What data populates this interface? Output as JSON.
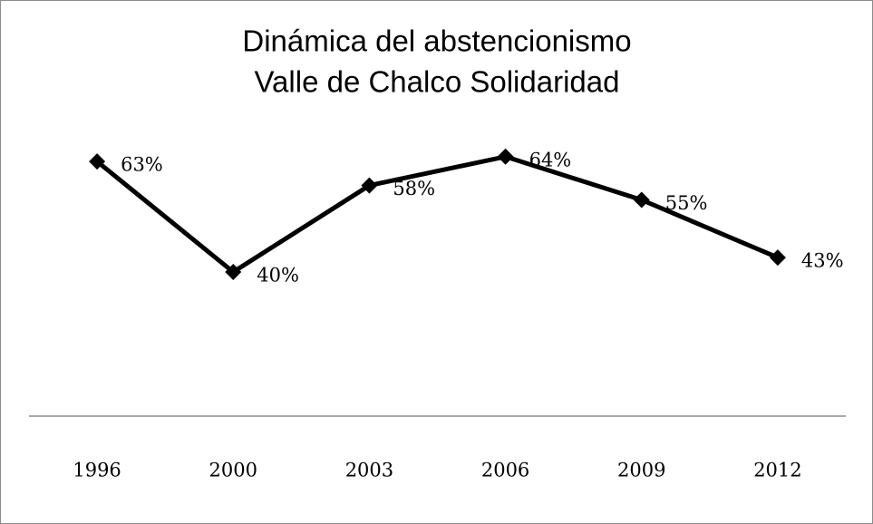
{
  "chart_data": {
    "type": "line",
    "title": [
      "Dinámica del abstencionismo",
      "Valle de Chalco Solidaridad"
    ],
    "categories": [
      "1996",
      "2000",
      "2003",
      "2006",
      "2009",
      "2012"
    ],
    "values": [
      63,
      40,
      58,
      64,
      55,
      43
    ],
    "value_labels": [
      "63%",
      "40%",
      "58%",
      "64%",
      "55%",
      "43%"
    ],
    "color": "#000000",
    "ylim": [
      10,
      70
    ]
  }
}
